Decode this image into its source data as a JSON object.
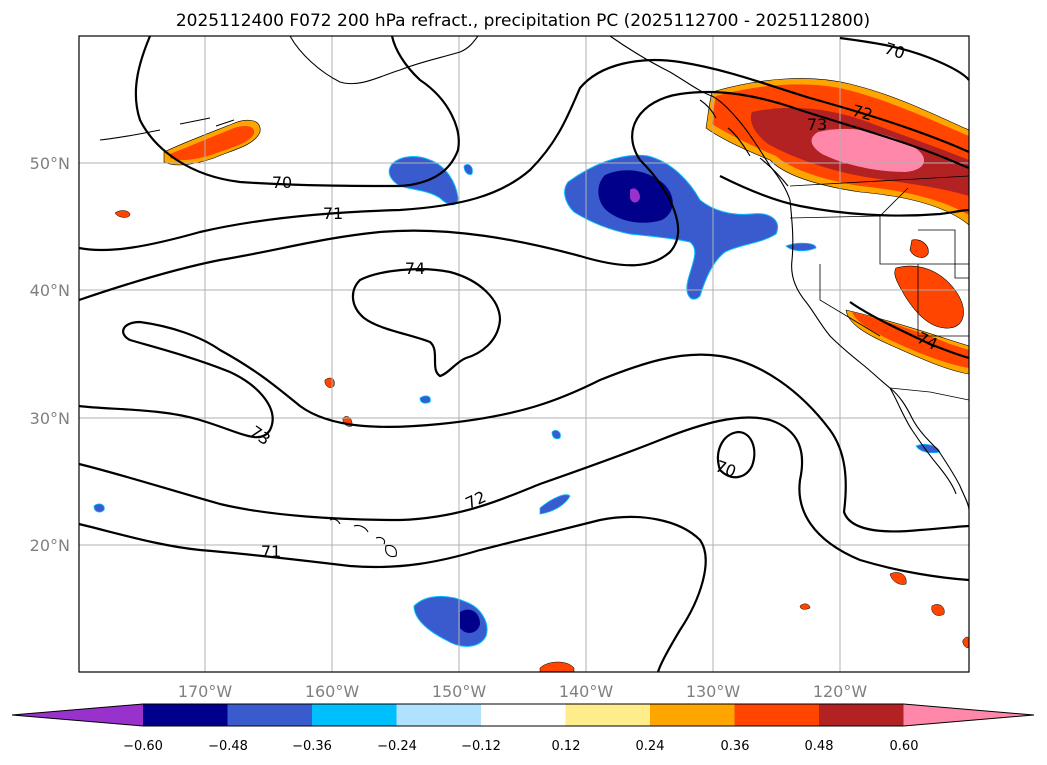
{
  "figure": {
    "title": "2025112400 F072 200 hPa refract., precipitation PC (2025112700 - 2025112800)"
  },
  "map": {
    "lat_labels": [
      "50°N",
      "40°N",
      "30°N",
      "20°N"
    ],
    "lon_labels": [
      "170°W",
      "160°W",
      "150°W",
      "140°W",
      "130°W",
      "120°W"
    ],
    "contour_labels": [
      "70",
      "70",
      "70",
      "71",
      "71",
      "72",
      "72",
      "73",
      "73",
      "73",
      "74",
      "74"
    ]
  },
  "colorbar": {
    "ticks": [
      "−0.60",
      "−0.48",
      "−0.36",
      "−0.24",
      "−0.12",
      "0.12",
      "0.24",
      "0.36",
      "0.48",
      "0.60"
    ],
    "colors": [
      "#9932cc",
      "#00008b",
      "#3a5bcd",
      "#00bfff",
      "#b0e2ff",
      "#ffffff",
      "#ffec8b",
      "#ffa500",
      "#ff4500",
      "#b22222",
      "#ff88aa"
    ]
  }
}
